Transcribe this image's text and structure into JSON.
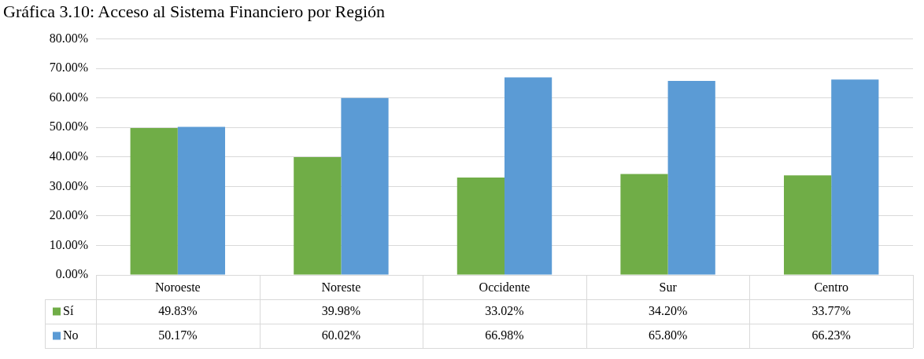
{
  "chart_data": {
    "type": "bar",
    "title": "Gráfica 3.10: Acceso al Sistema Financiero por Región",
    "categories": [
      "Noroeste",
      "Noreste",
      "Occidente",
      "Sur",
      "Centro"
    ],
    "series": [
      {
        "name": "Sí",
        "color": "#70ad47",
        "values": [
          49.83,
          39.98,
          33.02,
          34.2,
          33.77
        ],
        "value_labels": [
          "49.83%",
          "39.98%",
          "33.02%",
          "34.20%",
          "33.77%"
        ]
      },
      {
        "name": "No",
        "color": "#5b9bd5",
        "values": [
          50.17,
          60.02,
          66.98,
          65.8,
          66.23
        ],
        "value_labels": [
          "50.17%",
          "60.02%",
          "66.98%",
          "65.80%",
          "66.23%"
        ]
      }
    ],
    "ylim": [
      0,
      80
    ],
    "yticks": [
      {
        "value": 0,
        "label": "0.00%"
      },
      {
        "value": 10,
        "label": "10.00%"
      },
      {
        "value": 20,
        "label": "20.00%"
      },
      {
        "value": 30,
        "label": "30.00%"
      },
      {
        "value": 40,
        "label": "40.00%"
      },
      {
        "value": 50,
        "label": "50.00%"
      },
      {
        "value": 60,
        "label": "60.00%"
      },
      {
        "value": 70,
        "label": "70.00%"
      },
      {
        "value": 80,
        "label": "80.00%"
      }
    ],
    "grid": "y",
    "legend": "bottom"
  }
}
